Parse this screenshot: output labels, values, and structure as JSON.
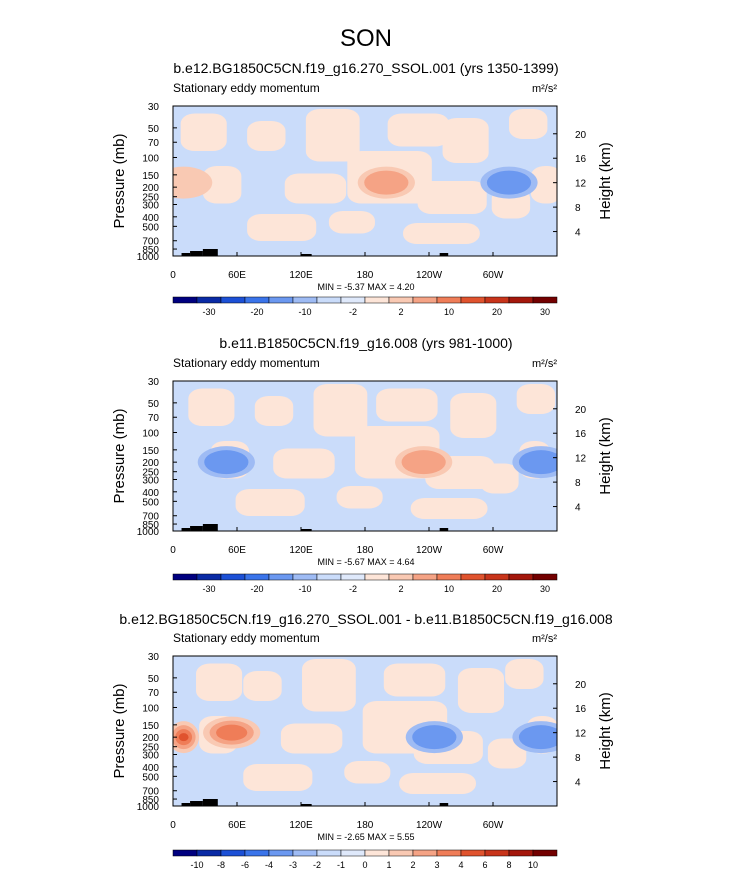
{
  "page_title": "SON",
  "chart_data": [
    {
      "type": "heatmap",
      "title": "b.e12.BG1850C5CN.f19_g16.270_SSOL.001 (yrs 1350-1399)",
      "subtitle": "Stationary eddy momentum",
      "units": "m²/s²",
      "ylabel": "Pressure (mb)",
      "y2label": "Height (km)",
      "xticks": [
        "0",
        "60E",
        "120E",
        "180",
        "120W",
        "60W"
      ],
      "pressure_ticks": [
        "30",
        "50",
        "70",
        "100",
        "150",
        "200",
        "250",
        "300",
        "400",
        "500",
        "700",
        "850",
        "1000"
      ],
      "height_ticks": [
        "20",
        "16",
        "12",
        "8",
        "4"
      ],
      "stats": "MIN = -5.37  MAX =  4.20",
      "colorbar_labels": [
        "-30",
        "-20",
        "-10",
        "-2",
        "2",
        "10",
        "20",
        "30"
      ],
      "features": [
        {
          "lon": 200,
          "p": 180,
          "value": 3
        },
        {
          "lon": 315,
          "p": 180,
          "value": -3
        },
        {
          "lon": 10,
          "p": 180,
          "value": 2
        }
      ]
    },
    {
      "type": "heatmap",
      "title": "b.e11.B1850C5CN.f19_g16.008 (yrs 981-1000)",
      "subtitle": "Stationary eddy momentum",
      "units": "m²/s²",
      "ylabel": "Pressure (mb)",
      "y2label": "Height (km)",
      "xticks": [
        "0",
        "60E",
        "120E",
        "180",
        "120W",
        "60W"
      ],
      "pressure_ticks": [
        "30",
        "50",
        "70",
        "100",
        "150",
        "200",
        "250",
        "300",
        "400",
        "500",
        "700",
        "850",
        "1000"
      ],
      "height_ticks": [
        "20",
        "16",
        "12",
        "8",
        "4"
      ],
      "stats": "MIN = -5.67  MAX =  4.64",
      "colorbar_labels": [
        "-30",
        "-20",
        "-10",
        "-2",
        "2",
        "10",
        "20",
        "30"
      ],
      "features": [
        {
          "lon": 235,
          "p": 200,
          "value": 3
        },
        {
          "lon": 50,
          "p": 200,
          "value": -3
        },
        {
          "lon": 345,
          "p": 200,
          "value": -3
        }
      ]
    },
    {
      "type": "heatmap",
      "title": "b.e12.BG1850C5CN.f19_g16.270_SSOL.001 - b.e11.B1850C5CN.f19_g16.008",
      "subtitle": "Stationary eddy momentum",
      "units": "m²/s²",
      "ylabel": "Pressure (mb)",
      "y2label": "Height (km)",
      "xticks": [
        "0",
        "60E",
        "120E",
        "180",
        "120W",
        "60W"
      ],
      "pressure_ticks": [
        "30",
        "50",
        "70",
        "100",
        "150",
        "200",
        "250",
        "300",
        "400",
        "500",
        "700",
        "850",
        "1000"
      ],
      "height_ticks": [
        "20",
        "16",
        "12",
        "8",
        "4"
      ],
      "stats": "MIN = -2.65  MAX =  5.55",
      "colorbar_labels": [
        "-10",
        "-8",
        "-6",
        "-4",
        "-3",
        "-2",
        "-1",
        "0",
        "1",
        "2",
        "3",
        "4",
        "6",
        "8",
        "10"
      ],
      "features": [
        {
          "lon": 10,
          "p": 200,
          "value": 5.5
        },
        {
          "lon": 55,
          "p": 180,
          "value": 4
        },
        {
          "lon": 245,
          "p": 200,
          "value": -2.5
        },
        {
          "lon": 345,
          "p": 200,
          "value": -2.5
        }
      ]
    }
  ],
  "palette": [
    "#00007f",
    "#0a2aa5",
    "#1c50d6",
    "#3a74ea",
    "#6b98f0",
    "#9ebbf4",
    "#cadcfa",
    "#dfe9fb",
    "#fde5d8",
    "#f9c9b3",
    "#f5a385",
    "#ef7d58",
    "#e0532e",
    "#c8341a",
    "#a4170c",
    "#730000"
  ]
}
